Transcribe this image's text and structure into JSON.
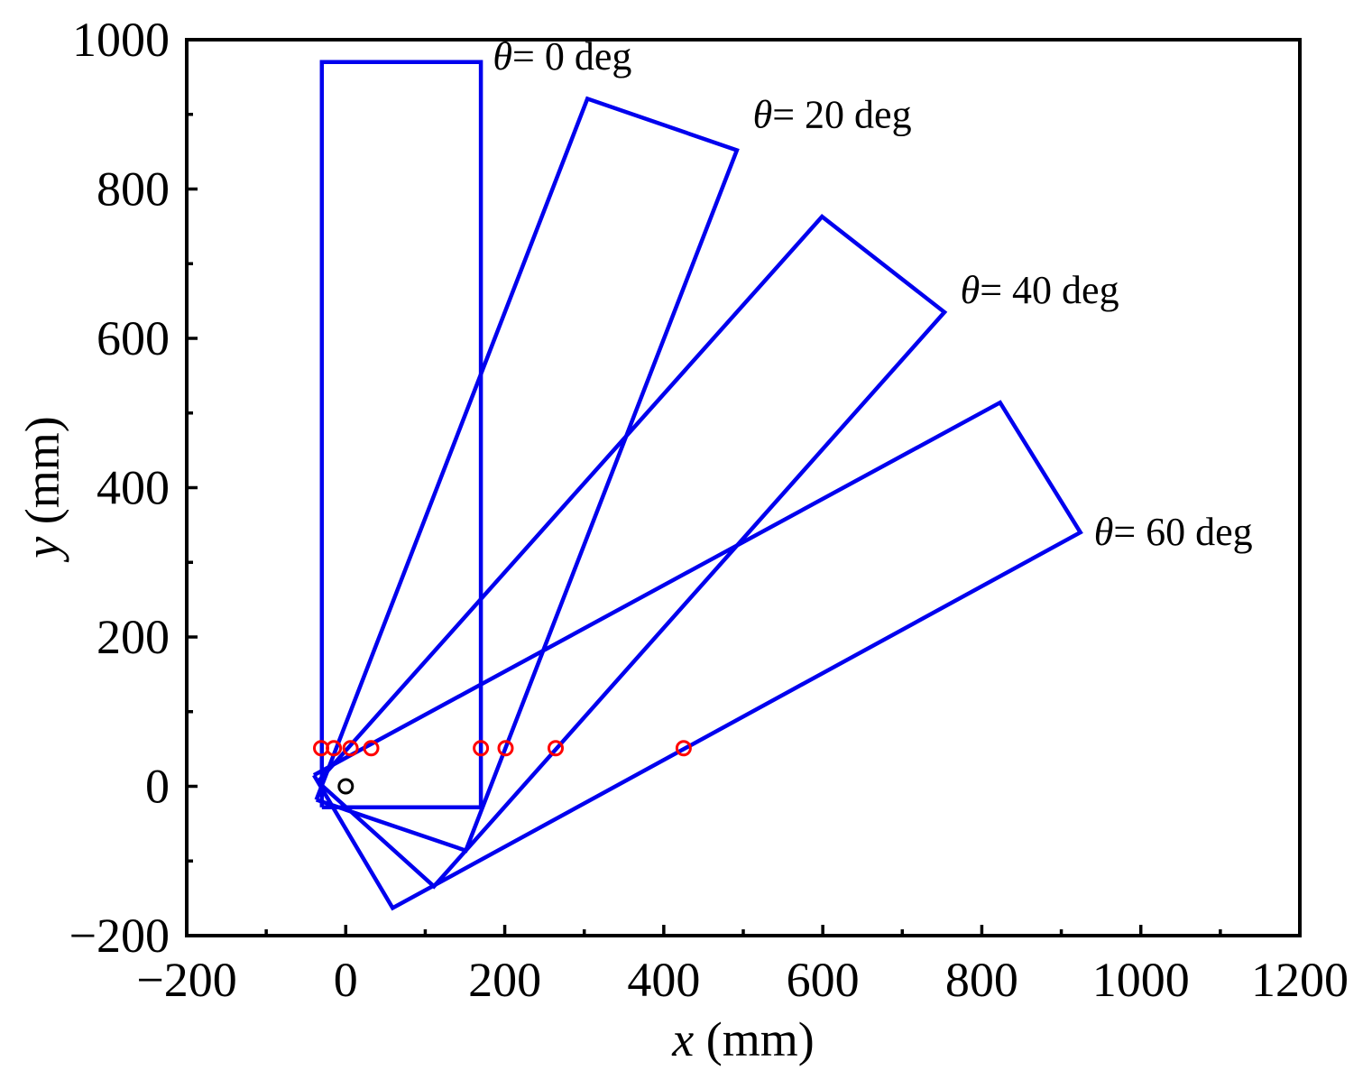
{
  "chart_data": {
    "type": "line",
    "title": "",
    "xlabel": {
      "var": "x",
      "unit": " (mm)"
    },
    "ylabel": {
      "var": "y",
      "unit": " (mm)"
    },
    "xlim": [
      -200,
      1200
    ],
    "ylim": [
      -200,
      1000
    ],
    "xticks": [
      -200,
      0,
      200,
      400,
      600,
      800,
      1000,
      1200
    ],
    "yticks": [
      -200,
      0,
      200,
      400,
      600,
      800,
      1000
    ],
    "xtick_labels": [
      "−200",
      "0",
      "200",
      "400",
      "600",
      "800",
      "1000",
      "1200"
    ],
    "ytick_labels": [
      "−200",
      "0",
      "200",
      "400",
      "600",
      "800",
      "1000"
    ],
    "x_minor_step": 100,
    "y_minor_step": 100,
    "grid": false,
    "colors": {
      "outline": "#0000ee",
      "marker": "#ff0000",
      "center": "#000000",
      "axis": "#000000"
    },
    "series": [
      {
        "name": "theta-0",
        "label": {
          "symbol": "θ",
          "text": "= 0 deg"
        },
        "points": [
          [
            -30,
            -28
          ],
          [
            170,
            -28
          ],
          [
            170,
            970
          ],
          [
            -30,
            970
          ],
          [
            -30,
            -28
          ]
        ],
        "label_anchor": [
          185,
          960
        ]
      },
      {
        "name": "theta-20",
        "label": {
          "symbol": "θ",
          "text": "= 20 deg"
        },
        "points": [
          [
            -37,
            -18
          ],
          [
            151,
            -86
          ],
          [
            492,
            852
          ],
          [
            304,
            921
          ],
          [
            -37,
            -18
          ]
        ],
        "label_anchor": [
          512,
          882
        ]
      },
      {
        "name": "theta-40",
        "label": {
          "symbol": "θ",
          "text": "= 40 deg"
        },
        "points": [
          [
            -35,
            6
          ],
          [
            111,
            -134
          ],
          [
            753,
            635
          ],
          [
            599,
            763
          ],
          [
            -35,
            6
          ]
        ],
        "label_anchor": [
          773,
          647
        ]
      },
      {
        "name": "theta-60",
        "label": {
          "symbol": "θ",
          "text": "= 60 deg"
        },
        "points": [
          [
            -40,
            15
          ],
          [
            59,
            -163
          ],
          [
            924,
            340
          ],
          [
            823,
            514
          ],
          [
            -40,
            15
          ]
        ],
        "label_anchor": [
          941,
          323
        ]
      }
    ],
    "red_markers": [
      [
        -31,
        51
      ],
      [
        -15,
        51
      ],
      [
        6,
        51
      ],
      [
        32,
        51
      ],
      [
        170,
        51
      ],
      [
        201,
        51
      ],
      [
        264,
        51
      ],
      [
        425,
        51
      ]
    ],
    "center_marker": [
      0,
      0
    ]
  }
}
